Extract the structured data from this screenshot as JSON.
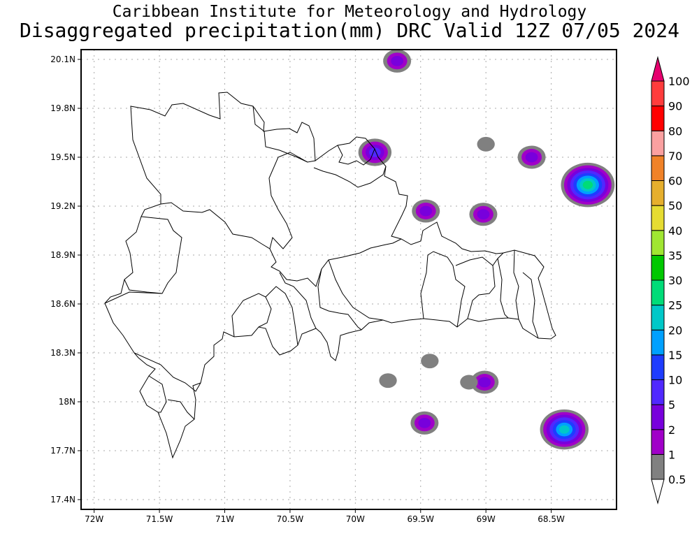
{
  "title_line1": "Caribbean Institute for Meteorology and Hydrology",
  "title_line2": "Disaggregated precipitation(mm) DRC Valid 12Z 07/05 2024",
  "map": {
    "lon_ticks": [
      "72W",
      "71.5W",
      "71W",
      "70.5W",
      "70W",
      "69.5W",
      "69W",
      "68.5W"
    ],
    "lat_ticks": [
      "17.4N",
      "17.7N",
      "18N",
      "18.3N",
      "18.6N",
      "18.9N",
      "19.2N",
      "19.5N",
      "19.8N",
      "20.1N"
    ],
    "lon_range": [
      -72.1,
      -68.0
    ],
    "lat_range": [
      17.34,
      20.16
    ],
    "grid": true
  },
  "colorbar": {
    "labels": [
      "0.5",
      "1",
      "2",
      "5",
      "10",
      "15",
      "20",
      "25",
      "30",
      "35",
      "40",
      "50",
      "60",
      "70",
      "80",
      "90",
      "100"
    ],
    "colors": [
      "#808080",
      "#a000c8",
      "#7800dc",
      "#5028ff",
      "#1e3cff",
      "#00a0ff",
      "#00c8c8",
      "#00dc78",
      "#00c800",
      "#a0e632",
      "#e6dc32",
      "#e6af2d",
      "#f08228",
      "#faa0a0",
      "#ff0000",
      "#ff3c3c",
      "#e6006e"
    ]
  },
  "precip_cells": [
    {
      "lon": -69.68,
      "lat": 20.09,
      "max": "2"
    },
    {
      "lon": -69.85,
      "lat": 19.53,
      "max": "5"
    },
    {
      "lon": -68.65,
      "lat": 19.5,
      "max": "2"
    },
    {
      "lon": -68.22,
      "lat": 19.33,
      "max": "25"
    },
    {
      "lon": -69.46,
      "lat": 19.17,
      "max": "2"
    },
    {
      "lon": -69.02,
      "lat": 19.15,
      "max": "2"
    },
    {
      "lon": -68.4,
      "lat": 17.83,
      "max": "20"
    },
    {
      "lon": -69.47,
      "lat": 17.87,
      "max": "2"
    },
    {
      "lon": -69.01,
      "lat": 18.12,
      "max": "2"
    },
    {
      "lon": -69.75,
      "lat": 18.13,
      "max": "0.5"
    },
    {
      "lon": -69.43,
      "lat": 18.25,
      "max": "0.5"
    },
    {
      "lon": -69.0,
      "lat": 19.58,
      "max": "0.5"
    },
    {
      "lon": -69.13,
      "lat": 18.12,
      "max": "0.5"
    }
  ]
}
